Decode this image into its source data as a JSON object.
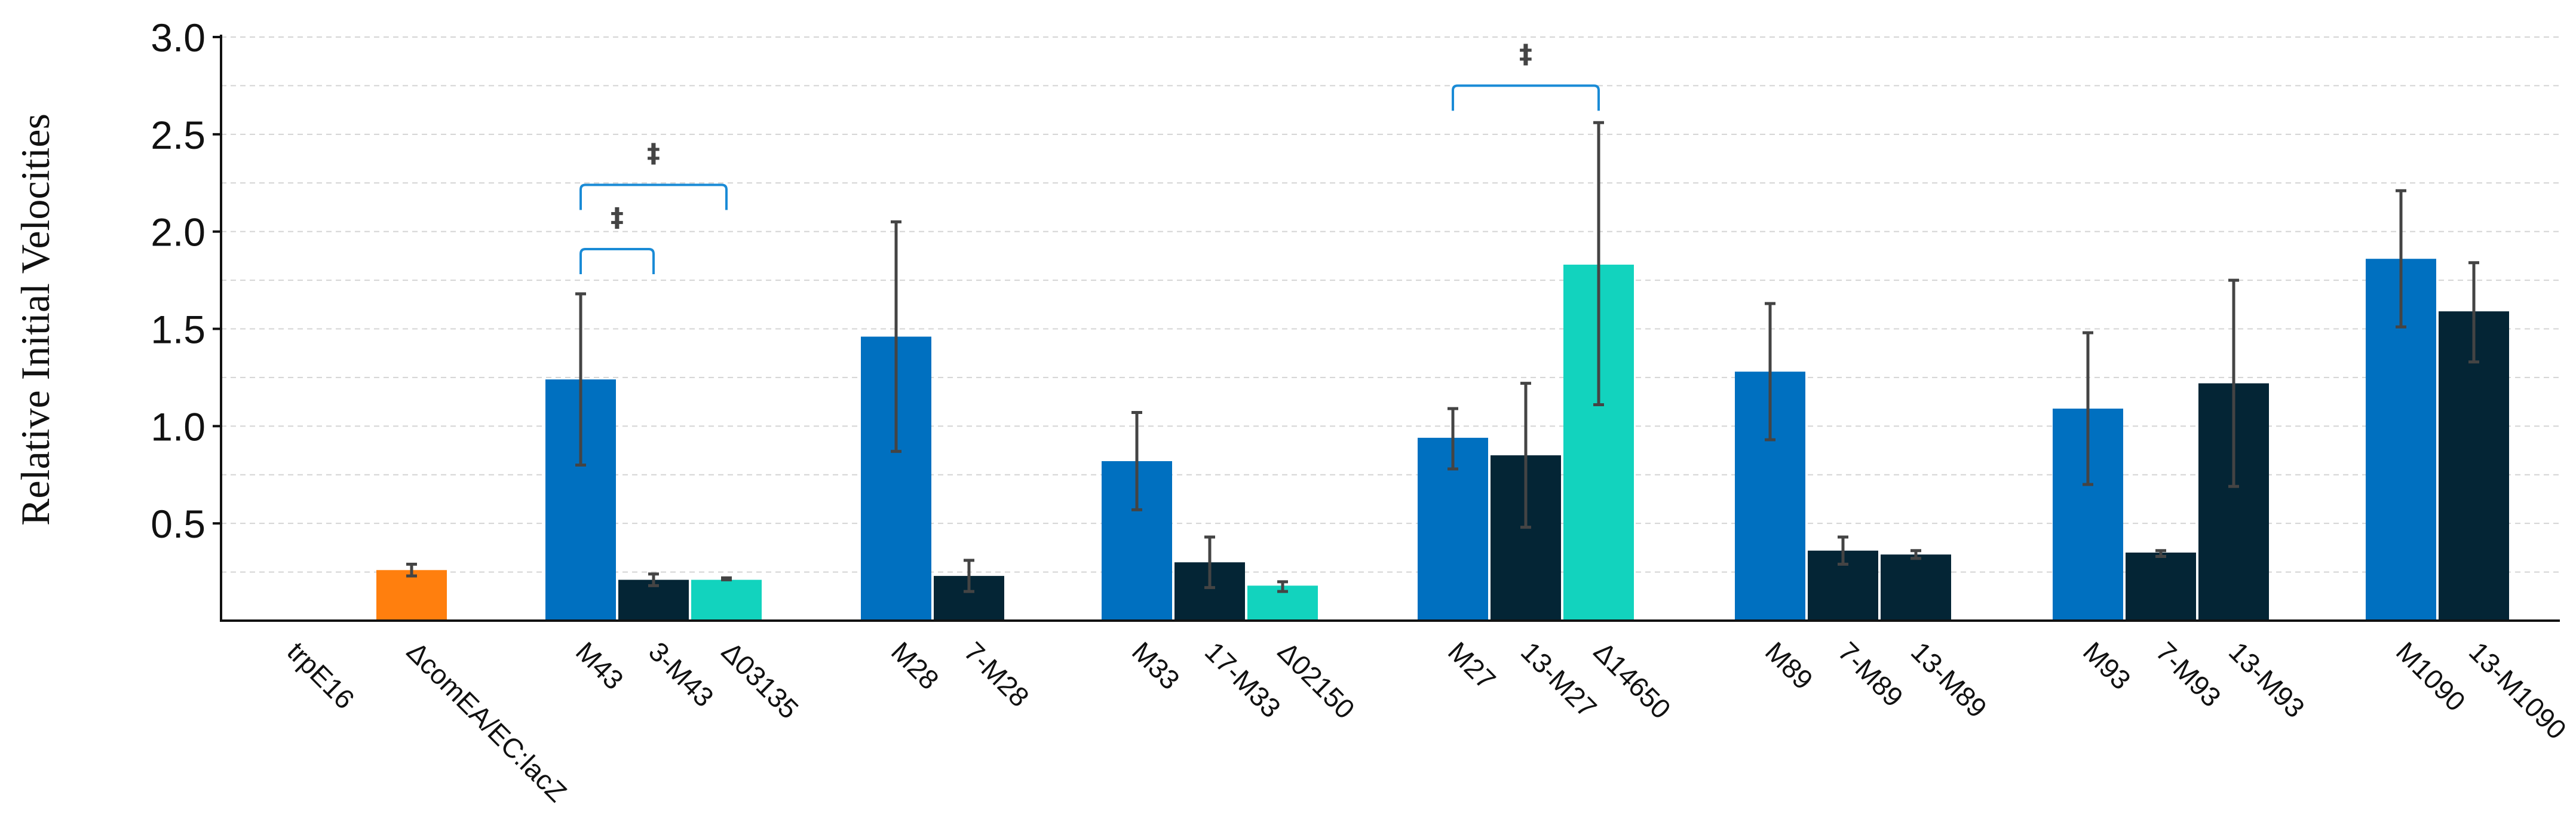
{
  "chart_data": {
    "type": "bar",
    "ylabel": "Relative Initial Velocities",
    "xlabel": "",
    "ylim": [
      0,
      3.0
    ],
    "yticks": [
      "0.5",
      "1.0",
      "1.5",
      "2.0",
      "2.5",
      "3.0"
    ],
    "grid": true,
    "colors": {
      "blue": "#0070C0",
      "dark": "#042535",
      "teal": "#12D3BE",
      "orange": "#FF7F0E",
      "bracket": "#1A8BD6",
      "errorbar": "#444444"
    },
    "bars": [
      {
        "label": "trpE16",
        "value": 0,
        "err_low": 0,
        "err_high": 0,
        "color": "blue"
      },
      {
        "label": "ΔcomEA/EC:lacZ",
        "value": 0.26,
        "err_low": 0.23,
        "err_high": 0.29,
        "color": "orange"
      },
      {
        "label": "M43",
        "value": 1.24,
        "err_low": 0.8,
        "err_high": 1.68,
        "color": "blue"
      },
      {
        "label": "3-M43",
        "value": 0.21,
        "err_low": 0.18,
        "err_high": 0.24,
        "color": "dark"
      },
      {
        "label": "Δ03135",
        "value": 0.21,
        "err_low": 0.21,
        "err_high": 0.22,
        "color": "teal"
      },
      {
        "label": "M28",
        "value": 1.46,
        "err_low": 0.87,
        "err_high": 2.05,
        "color": "blue"
      },
      {
        "label": "7-M28",
        "value": 0.23,
        "err_low": 0.15,
        "err_high": 0.31,
        "color": "dark"
      },
      {
        "label": "M33",
        "value": 0.82,
        "err_low": 0.57,
        "err_high": 1.07,
        "color": "blue"
      },
      {
        "label": "17-M33",
        "value": 0.3,
        "err_low": 0.17,
        "err_high": 0.43,
        "color": "dark"
      },
      {
        "label": "Δ02150",
        "value": 0.18,
        "err_low": 0.15,
        "err_high": 0.2,
        "color": "teal"
      },
      {
        "label": "M27",
        "value": 0.94,
        "err_low": 0.78,
        "err_high": 1.09,
        "color": "blue"
      },
      {
        "label": "13-M27",
        "value": 0.85,
        "err_low": 0.48,
        "err_high": 1.22,
        "color": "dark"
      },
      {
        "label": "Δ14650",
        "value": 1.83,
        "err_low": 1.11,
        "err_high": 2.56,
        "color": "teal"
      },
      {
        "label": "M89",
        "value": 1.28,
        "err_low": 0.93,
        "err_high": 1.63,
        "color": "blue"
      },
      {
        "label": "7-M89",
        "value": 0.36,
        "err_low": 0.29,
        "err_high": 0.43,
        "color": "dark"
      },
      {
        "label": "13-M89",
        "value": 0.34,
        "err_low": 0.32,
        "err_high": 0.36,
        "color": "dark"
      },
      {
        "label": "M93",
        "value": 1.09,
        "err_low": 0.7,
        "err_high": 1.48,
        "color": "blue"
      },
      {
        "label": "7-M93",
        "value": 0.35,
        "err_low": 0.33,
        "err_high": 0.36,
        "color": "dark"
      },
      {
        "label": "13-M93",
        "value": 1.22,
        "err_low": 0.69,
        "err_high": 1.75,
        "color": "dark"
      },
      {
        "label": "M1090",
        "value": 1.86,
        "err_low": 1.51,
        "err_high": 2.21,
        "color": "blue"
      },
      {
        "label": "13-M1090",
        "value": 1.59,
        "err_low": 1.33,
        "err_high": 1.84,
        "color": "dark"
      }
    ],
    "annotations": [
      {
        "type": "significance",
        "from": "M43",
        "to": "3-M43",
        "symbol": "‡",
        "y": 1.91
      },
      {
        "type": "significance",
        "from": "M43",
        "to": "Δ03135",
        "symbol": "‡",
        "y": 2.24
      },
      {
        "type": "significance",
        "from": "M27",
        "to": "Δ14650",
        "symbol": "‡",
        "y": 2.75
      }
    ]
  }
}
